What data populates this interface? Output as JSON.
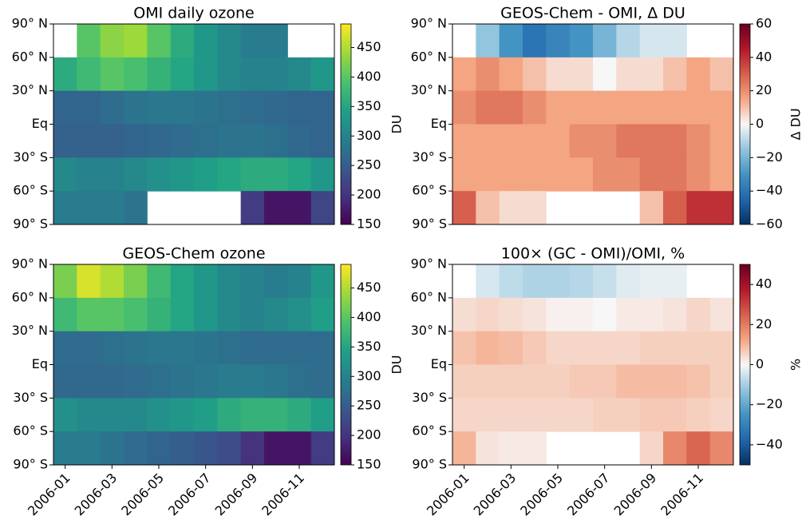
{
  "chart_data": [
    {
      "type": "heatmap",
      "title": "OMI daily ozone",
      "colormap": "viridis",
      "colorbar_label": "DU",
      "x": [
        "2006-01",
        "2006-02",
        "2006-03",
        "2006-04",
        "2006-05",
        "2006-06",
        "2006-07",
        "2006-08",
        "2006-09",
        "2006-10",
        "2006-11",
        "2006-12"
      ],
      "y": [
        75,
        45,
        15,
        -15,
        -45,
        -75
      ],
      "z": [
        [
          null,
          400,
          430,
          440,
          400,
          360,
          330,
          310,
          290,
          290,
          null,
          null
        ],
        [
          360,
          380,
          400,
          390,
          370,
          350,
          330,
          310,
          300,
          300,
          310,
          330
        ],
        [
          260,
          260,
          270,
          280,
          285,
          285,
          280,
          275,
          270,
          265,
          260,
          260
        ],
        [
          255,
          255,
          255,
          260,
          265,
          270,
          275,
          280,
          280,
          275,
          265,
          260
        ],
        [
          310,
          300,
          300,
          310,
          320,
          330,
          340,
          350,
          360,
          360,
          350,
          330
        ],
        [
          290,
          290,
          290,
          280,
          null,
          null,
          null,
          null,
          210,
          170,
          170,
          220
        ]
      ],
      "ylim": [
        -90,
        90
      ],
      "yticks": [
        {
          "value": 90,
          "label": "90° N"
        },
        {
          "value": 60,
          "label": "60° N"
        },
        {
          "value": 30,
          "label": "30° N"
        },
        {
          "value": 0,
          "label": "Eq"
        },
        {
          "value": -30,
          "label": "30° S"
        },
        {
          "value": -60,
          "label": "60° S"
        },
        {
          "value": -90,
          "label": "90° S"
        }
      ],
      "clim": [
        150,
        490
      ],
      "cticks": [
        150,
        200,
        250,
        300,
        350,
        400,
        450
      ]
    },
    {
      "type": "heatmap",
      "title": "GEOS-Chem - OMI, Δ DU",
      "colormap": "RdBu_r",
      "colorbar_label": "Δ DU",
      "x": [
        "2006-01",
        "2006-02",
        "2006-03",
        "2006-04",
        "2006-05",
        "2006-06",
        "2006-07",
        "2006-08",
        "2006-09",
        "2006-10",
        "2006-11",
        "2006-12"
      ],
      "y": [
        75,
        45,
        15,
        -15,
        -45,
        -75
      ],
      "z": [
        [
          null,
          -15,
          -30,
          -40,
          -35,
          -30,
          -20,
          -10,
          -5,
          -5,
          null,
          null
        ],
        [
          15,
          20,
          15,
          10,
          5,
          5,
          0,
          5,
          5,
          10,
          15,
          10
        ],
        [
          20,
          25,
          25,
          20,
          15,
          15,
          15,
          15,
          15,
          15,
          15,
          15
        ],
        [
          15,
          15,
          15,
          15,
          15,
          20,
          20,
          25,
          25,
          25,
          20,
          15
        ],
        [
          15,
          15,
          15,
          15,
          15,
          15,
          20,
          20,
          25,
          25,
          20,
          15
        ],
        [
          30,
          10,
          5,
          5,
          null,
          null,
          null,
          null,
          10,
          30,
          40,
          40
        ]
      ],
      "ylim": [
        -90,
        90
      ],
      "yticks": [
        {
          "value": 90,
          "label": "90° N"
        },
        {
          "value": 60,
          "label": "60° N"
        },
        {
          "value": 30,
          "label": "30° N"
        },
        {
          "value": 0,
          "label": "Eq"
        },
        {
          "value": -30,
          "label": "30° S"
        },
        {
          "value": -60,
          "label": "60° S"
        },
        {
          "value": -90,
          "label": "90° S"
        }
      ],
      "clim": [
        -60,
        60
      ],
      "cticks": [
        {
          "value": -60,
          "label": "−60"
        },
        {
          "value": -40,
          "label": "−40"
        },
        {
          "value": -20,
          "label": "−20"
        },
        0,
        20,
        40,
        60
      ]
    },
    {
      "type": "heatmap",
      "title": "GEOS-Chem ozone",
      "colormap": "viridis",
      "colorbar_label": "DU",
      "x": [
        "2006-01",
        "2006-02",
        "2006-03",
        "2006-04",
        "2006-05",
        "2006-06",
        "2006-07",
        "2006-08",
        "2006-09",
        "2006-10",
        "2006-11",
        "2006-12"
      ],
      "y": [
        75,
        45,
        15,
        -15,
        -45,
        -75
      ],
      "z": [
        [
          420,
          470,
          450,
          420,
          380,
          350,
          330,
          310,
          300,
          290,
          300,
          330
        ],
        [
          380,
          400,
          400,
          390,
          370,
          350,
          330,
          310,
          300,
          310,
          320,
          340
        ],
        [
          270,
          270,
          275,
          280,
          285,
          285,
          280,
          275,
          270,
          270,
          270,
          270
        ],
        [
          265,
          265,
          265,
          270,
          275,
          280,
          285,
          290,
          290,
          285,
          275,
          270
        ],
        [
          320,
          310,
          310,
          310,
          320,
          330,
          340,
          360,
          370,
          370,
          360,
          340
        ],
        [
          290,
          290,
          280,
          270,
          260,
          250,
          240,
          230,
          200,
          170,
          170,
          210
        ]
      ],
      "ylim": [
        -90,
        90
      ],
      "yticks": [
        {
          "value": 90,
          "label": "90° N"
        },
        {
          "value": 60,
          "label": "60° N"
        },
        {
          "value": 30,
          "label": "30° N"
        },
        {
          "value": 0,
          "label": "Eq"
        },
        {
          "value": -30,
          "label": "30° S"
        },
        {
          "value": -60,
          "label": "60° S"
        },
        {
          "value": -90,
          "label": "90° S"
        }
      ],
      "xticks": [
        "2006-01",
        "2006-03",
        "2006-05",
        "2006-07",
        "2006-09",
        "2006-11"
      ],
      "clim": [
        150,
        490
      ],
      "cticks": [
        150,
        200,
        250,
        300,
        350,
        400,
        450
      ]
    },
    {
      "type": "heatmap",
      "title": "100× (GC - OMI)/OMI, %",
      "colormap": "RdBu_r",
      "colorbar_label": "%",
      "x": [
        "2006-01",
        "2006-02",
        "2006-03",
        "2006-04",
        "2006-05",
        "2006-06",
        "2006-07",
        "2006-08",
        "2006-09",
        "2006-10",
        "2006-11",
        "2006-12"
      ],
      "y": [
        75,
        45,
        15,
        -15,
        -45,
        -75
      ],
      "z": [
        [
          null,
          -4,
          -7,
          -9,
          -9,
          -8,
          -6,
          -3,
          -2,
          -2,
          null,
          null
        ],
        [
          4,
          5,
          4,
          3,
          1,
          1,
          0,
          2,
          2,
          3,
          5,
          3
        ],
        [
          8,
          10,
          9,
          7,
          5,
          5,
          5,
          5,
          6,
          6,
          6,
          6
        ],
        [
          6,
          6,
          6,
          6,
          6,
          7,
          7,
          9,
          9,
          9,
          8,
          6
        ],
        [
          5,
          5,
          5,
          5,
          5,
          5,
          6,
          6,
          7,
          7,
          6,
          5
        ],
        [
          10,
          3,
          2,
          2,
          null,
          null,
          null,
          null,
          5,
          18,
          24,
          18
        ]
      ],
      "ylim": [
        -90,
        90
      ],
      "yticks": [
        {
          "value": 90,
          "label": "90° N"
        },
        {
          "value": 60,
          "label": "60° N"
        },
        {
          "value": 30,
          "label": "30° N"
        },
        {
          "value": 0,
          "label": "Eq"
        },
        {
          "value": -30,
          "label": "30° S"
        },
        {
          "value": -60,
          "label": "60° S"
        },
        {
          "value": -90,
          "label": "90° S"
        }
      ],
      "xticks": [
        "2006-01",
        "2006-03",
        "2006-05",
        "2006-07",
        "2006-09",
        "2006-11"
      ],
      "clim": [
        -50,
        50
      ],
      "cticks": [
        {
          "value": -40,
          "label": "−40"
        },
        {
          "value": -20,
          "label": "−20"
        },
        0,
        20,
        40
      ]
    }
  ]
}
